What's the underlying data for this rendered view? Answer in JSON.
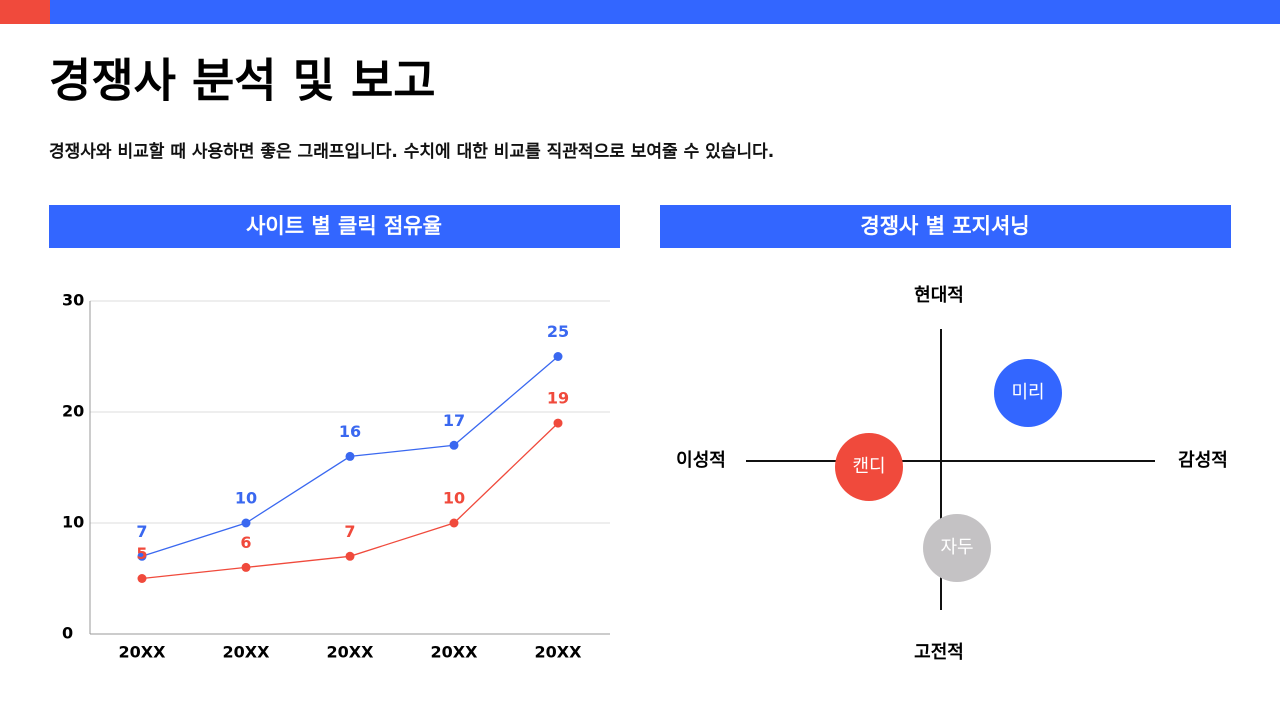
{
  "header": {
    "title": "경쟁사 분석 및 보고",
    "subtitle": "경쟁사와 비교할 때 사용하면 좋은 그래프입니다. 수치에 대한 비교를 직관적으로 보여줄 수 있습니다."
  },
  "chart_data": {
    "type": "line",
    "title": "사이트 별 클릭 점유율",
    "categories": [
      "20XX",
      "20XX",
      "20XX",
      "20XX",
      "20XX"
    ],
    "series": [
      {
        "color": "#3a68f0",
        "values": [
          7,
          10,
          16,
          17,
          25
        ]
      },
      {
        "color": "#f04a3c",
        "values": [
          5,
          6,
          7,
          10,
          19
        ]
      }
    ],
    "ylim": [
      0,
      30
    ],
    "yticks": [
      0,
      10,
      20,
      30
    ],
    "grid": true
  },
  "positioning": {
    "title": "경쟁사 별 포지셔닝",
    "axis_labels": {
      "top": "현대적",
      "bottom": "고전적",
      "left": "이성적",
      "right": "감성적"
    },
    "items": [
      "미리",
      "캔디",
      "자두"
    ]
  }
}
